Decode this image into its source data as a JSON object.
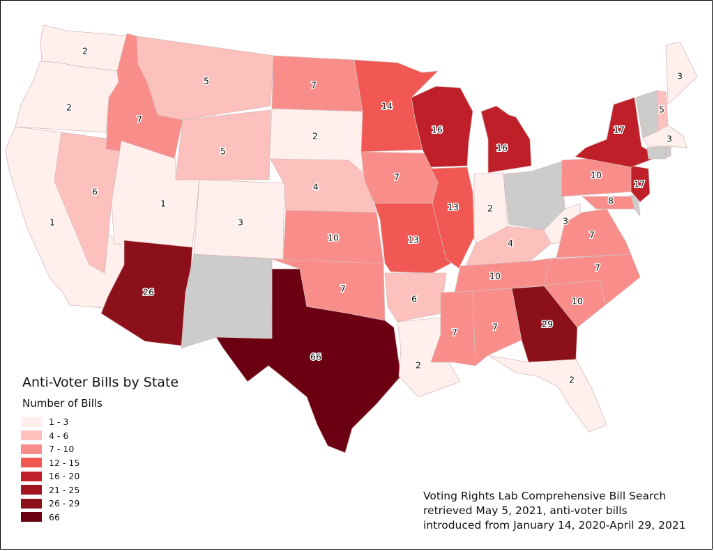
{
  "legend": {
    "title": "Anti-Voter Bills by State",
    "subtitle": "Number of Bills",
    "classes": [
      {
        "label": "1 - 3",
        "color": "#fff0ee"
      },
      {
        "label": "4 - 6",
        "color": "#fcc1bd"
      },
      {
        "label": "7 - 10",
        "color": "#f98d89"
      },
      {
        "label": "12 - 15",
        "color": "#f15853"
      },
      {
        "label": "16 - 20",
        "color": "#bf1f28"
      },
      {
        "label": "21 - 25",
        "color": "#a0151f"
      },
      {
        "label": "26 - 29",
        "color": "#8c101a"
      },
      {
        "label": "66",
        "color": "#6a0011"
      }
    ]
  },
  "no_data_color": "#cccccc",
  "source_lines": [
    "Voting Rights Lab Comprehensive Bill Search",
    "retrieved May 5, 2021, anti-voter bills",
    "introduced from January 14, 2020-April 29, 2021"
  ],
  "states": {
    "WA": {
      "bills": 2,
      "class": 0
    },
    "OR": {
      "bills": 2,
      "class": 0
    },
    "CA": {
      "bills": 1,
      "class": 0
    },
    "NV": {
      "bills": 6,
      "class": 1
    },
    "ID": {
      "bills": 7,
      "class": 2
    },
    "MT": {
      "bills": 5,
      "class": 1
    },
    "WY": {
      "bills": 5,
      "class": 1
    },
    "UT": {
      "bills": 1,
      "class": 0
    },
    "AZ": {
      "bills": 26,
      "class": 6
    },
    "CO": {
      "bills": 3,
      "class": 0
    },
    "NM": {
      "bills": null,
      "class": null
    },
    "ND": {
      "bills": 7,
      "class": 2
    },
    "SD": {
      "bills": 2,
      "class": 0
    },
    "NE": {
      "bills": 4,
      "class": 1
    },
    "KS": {
      "bills": 10,
      "class": 2
    },
    "OK": {
      "bills": 7,
      "class": 2
    },
    "TX": {
      "bills": 66,
      "class": 7
    },
    "MN": {
      "bills": 14,
      "class": 3
    },
    "IA": {
      "bills": 7,
      "class": 2
    },
    "MO": {
      "bills": 13,
      "class": 3
    },
    "AR": {
      "bills": 6,
      "class": 1
    },
    "LA": {
      "bills": 2,
      "class": 0
    },
    "WI": {
      "bills": 16,
      "class": 4
    },
    "IL": {
      "bills": 13,
      "class": 3
    },
    "MI": {
      "bills": 16,
      "class": 4
    },
    "IN": {
      "bills": 2,
      "class": 0
    },
    "OH": {
      "bills": null,
      "class": null
    },
    "KY": {
      "bills": 4,
      "class": 1
    },
    "TN": {
      "bills": 10,
      "class": 2
    },
    "MS": {
      "bills": 7,
      "class": 2
    },
    "AL": {
      "bills": 7,
      "class": 2
    },
    "GA": {
      "bills": 29,
      "class": 6
    },
    "FL": {
      "bills": 2,
      "class": 0
    },
    "SC": {
      "bills": 10,
      "class": 2
    },
    "NC": {
      "bills": 7,
      "class": 2
    },
    "VA": {
      "bills": 7,
      "class": 2
    },
    "WV": {
      "bills": 3,
      "class": 0
    },
    "PA": {
      "bills": 10,
      "class": 2
    },
    "MD": {
      "bills": 8,
      "class": 2
    },
    "DE": {
      "bills": null,
      "class": null
    },
    "NJ": {
      "bills": 17,
      "class": 4
    },
    "NY": {
      "bills": 17,
      "class": 4
    },
    "CT": {
      "bills": null,
      "class": null
    },
    "RI": {
      "bills": null,
      "class": null
    },
    "MA": {
      "bills": 3,
      "class": 0
    },
    "VT": {
      "bills": null,
      "class": null
    },
    "NH": {
      "bills": 5,
      "class": 1
    },
    "ME": {
      "bills": 3,
      "class": 0
    }
  }
}
